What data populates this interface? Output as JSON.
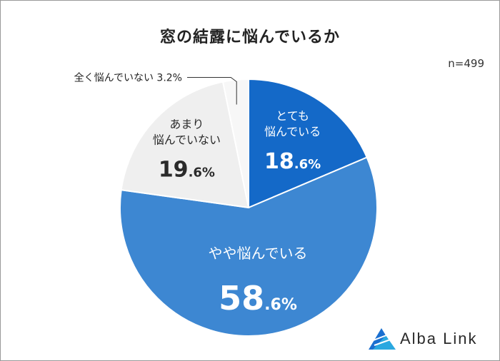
{
  "chart_data": {
    "type": "pie",
    "title": "窓の結露に悩んでいるか",
    "sample_size": "n=499",
    "slices": [
      {
        "label": "とても\n悩んでいる",
        "value": 18.6,
        "int": "18",
        "dec": ".6%",
        "color": "#1469c8",
        "text_color": "#ffffff"
      },
      {
        "label": "やや悩んでいる",
        "value": 58.6,
        "int": "58",
        "dec": ".6%",
        "color": "#3d87d2",
        "text_color": "#ffffff"
      },
      {
        "label": "あまり\n悩んでいない",
        "value": 19.6,
        "int": "19",
        "dec": ".6%",
        "color": "#efefef",
        "text_color": "#2a2a2a"
      },
      {
        "label": "全く悩んでいない",
        "value": 3.2,
        "int": "3",
        "dec": ".2%",
        "color": "#f7f7f7",
        "text_color": "#2a2a2a",
        "callout": "全く悩んでいない 3.2%"
      }
    ]
  },
  "brand": {
    "name": "Alba Link",
    "colors": [
      "#1a6fd0",
      "#2aa8e0"
    ]
  }
}
